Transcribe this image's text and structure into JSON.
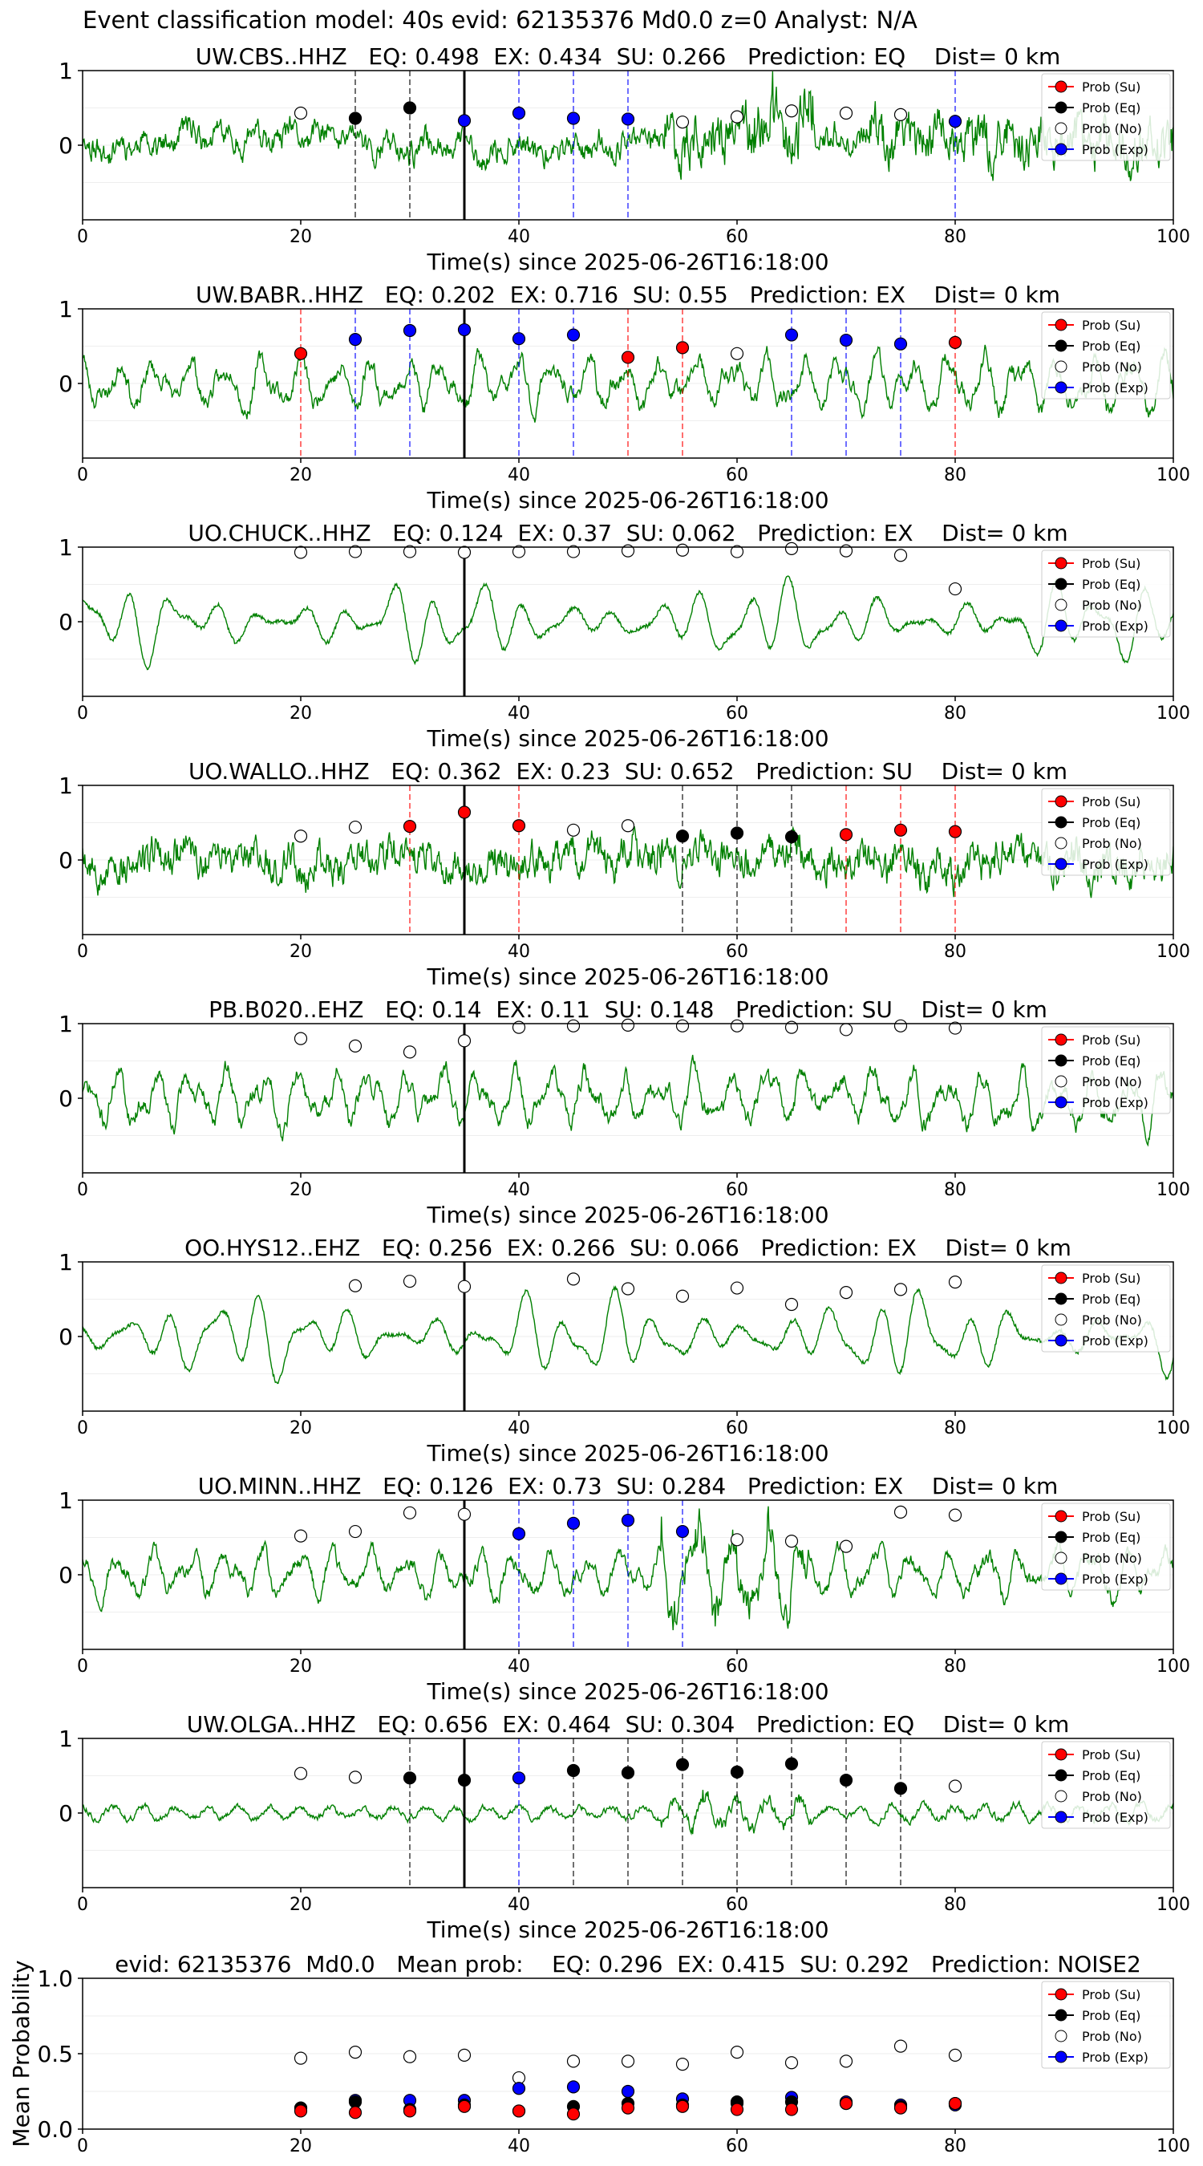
{
  "figure_title": "Event classification model: 40s evid: 62135376 Md0.0 z=0 Analyst: N/A",
  "colors": {
    "waveform": "#008000",
    "su": "#ff0000",
    "eq": "#000000",
    "no": "#ffffff",
    "exp": "#0000ff",
    "origin_line": "#000000"
  },
  "chart_data": [
    {
      "type": "line",
      "title": "UW.CBS..HHZ   EQ: 0.498  EX: 0.434  SU: 0.266   Prediction: EQ    Dist= 0 km",
      "xlabel": "Time(s) since 2025-06-26T16:18:00",
      "ylabel": "",
      "xlim": [
        0,
        100
      ],
      "ylim": [
        -1,
        1
      ],
      "xticks": [
        0,
        20,
        40,
        60,
        80,
        100
      ],
      "yticks": [
        0,
        1
      ],
      "legend_position": "top-right",
      "legend": [
        "Prob (Su)",
        "Prob (Eq)",
        "Prob (No)",
        "Prob (Exp)"
      ],
      "origin_time": 35,
      "waveform": {
        "seed": 11,
        "style": "noisy",
        "amp": 0.26,
        "late_amp": 0.5,
        "burst_at": 55
      },
      "points": [
        {
          "x": 20,
          "y": 0.43,
          "cls": "no"
        },
        {
          "x": 25,
          "y": 0.36,
          "cls": "eq"
        },
        {
          "x": 30,
          "y": 0.5,
          "cls": "eq"
        },
        {
          "x": 35,
          "y": 0.33,
          "cls": "exp"
        },
        {
          "x": 40,
          "y": 0.43,
          "cls": "exp"
        },
        {
          "x": 45,
          "y": 0.36,
          "cls": "exp"
        },
        {
          "x": 50,
          "y": 0.35,
          "cls": "exp"
        },
        {
          "x": 55,
          "y": 0.31,
          "cls": "no"
        },
        {
          "x": 60,
          "y": 0.38,
          "cls": "no"
        },
        {
          "x": 65,
          "y": 0.46,
          "cls": "no"
        },
        {
          "x": 70,
          "y": 0.43,
          "cls": "no"
        },
        {
          "x": 75,
          "y": 0.41,
          "cls": "no"
        },
        {
          "x": 80,
          "y": 0.32,
          "cls": "exp"
        }
      ]
    },
    {
      "type": "line",
      "title": "UW.BABR..HHZ   EQ: 0.202  EX: 0.716  SU: 0.55   Prediction: EX    Dist= 0 km",
      "xlabel": "Time(s) since 2025-06-26T16:18:00",
      "ylabel": "",
      "xlim": [
        0,
        100
      ],
      "ylim": [
        -1,
        1
      ],
      "xticks": [
        0,
        20,
        40,
        60,
        80,
        100
      ],
      "yticks": [
        0,
        1
      ],
      "legend_position": "top-right",
      "legend": [
        "Prob (Su)",
        "Prob (Eq)",
        "Prob (No)",
        "Prob (Exp)"
      ],
      "origin_time": 35,
      "waveform": {
        "seed": 23,
        "style": "mixed",
        "amp": 0.42,
        "late_amp": 0.45,
        "burst_at": 999
      },
      "points": [
        {
          "x": 20,
          "y": 0.4,
          "cls": "su"
        },
        {
          "x": 25,
          "y": 0.59,
          "cls": "exp"
        },
        {
          "x": 30,
          "y": 0.71,
          "cls": "exp"
        },
        {
          "x": 35,
          "y": 0.72,
          "cls": "exp"
        },
        {
          "x": 40,
          "y": 0.6,
          "cls": "exp"
        },
        {
          "x": 45,
          "y": 0.65,
          "cls": "exp"
        },
        {
          "x": 50,
          "y": 0.35,
          "cls": "su"
        },
        {
          "x": 55,
          "y": 0.48,
          "cls": "su"
        },
        {
          "x": 60,
          "y": 0.4,
          "cls": "no"
        },
        {
          "x": 65,
          "y": 0.65,
          "cls": "exp"
        },
        {
          "x": 70,
          "y": 0.58,
          "cls": "exp"
        },
        {
          "x": 75,
          "y": 0.53,
          "cls": "exp"
        },
        {
          "x": 80,
          "y": 0.55,
          "cls": "su"
        }
      ]
    },
    {
      "type": "line",
      "title": "UO.CHUCK..HHZ   EQ: 0.124  EX: 0.37  SU: 0.062   Prediction: EX    Dist= 0 km",
      "xlabel": "Time(s) since 2025-06-26T16:18:00",
      "ylabel": "",
      "xlim": [
        0,
        100
      ],
      "ylim": [
        -1,
        1
      ],
      "xticks": [
        0,
        20,
        40,
        60,
        80,
        100
      ],
      "yticks": [
        0,
        1
      ],
      "legend_position": "top-right",
      "legend": [
        "Prob (Su)",
        "Prob (Eq)",
        "Prob (No)",
        "Prob (Exp)"
      ],
      "origin_time": 35,
      "waveform": {
        "seed": 37,
        "style": "smooth",
        "amp": 0.55,
        "late_amp": 0.55,
        "burst_at": 999
      },
      "points": [
        {
          "x": 20,
          "y": 0.93,
          "cls": "no"
        },
        {
          "x": 25,
          "y": 0.94,
          "cls": "no"
        },
        {
          "x": 30,
          "y": 0.94,
          "cls": "no"
        },
        {
          "x": 35,
          "y": 0.93,
          "cls": "no"
        },
        {
          "x": 40,
          "y": 0.94,
          "cls": "no"
        },
        {
          "x": 45,
          "y": 0.94,
          "cls": "no"
        },
        {
          "x": 50,
          "y": 0.95,
          "cls": "no"
        },
        {
          "x": 55,
          "y": 0.96,
          "cls": "no"
        },
        {
          "x": 60,
          "y": 0.94,
          "cls": "no"
        },
        {
          "x": 65,
          "y": 0.98,
          "cls": "no"
        },
        {
          "x": 70,
          "y": 0.95,
          "cls": "no"
        },
        {
          "x": 75,
          "y": 0.89,
          "cls": "no"
        },
        {
          "x": 80,
          "y": 0.44,
          "cls": "no"
        }
      ]
    },
    {
      "type": "line",
      "title": "UO.WALLO..HHZ   EQ: 0.362  EX: 0.23  SU: 0.652   Prediction: SU    Dist= 0 km",
      "xlabel": "Time(s) since 2025-06-26T16:18:00",
      "ylabel": "",
      "xlim": [
        0,
        100
      ],
      "ylim": [
        -1,
        1
      ],
      "xticks": [
        0,
        20,
        40,
        60,
        80,
        100
      ],
      "yticks": [
        0,
        1
      ],
      "legend_position": "top-right",
      "legend": [
        "Prob (Su)",
        "Prob (Eq)",
        "Prob (No)",
        "Prob (Exp)"
      ],
      "origin_time": 35,
      "waveform": {
        "seed": 53,
        "style": "noisy",
        "amp": 0.38,
        "late_amp": 0.42,
        "burst_at": 999
      },
      "points": [
        {
          "x": 20,
          "y": 0.32,
          "cls": "no"
        },
        {
          "x": 25,
          "y": 0.44,
          "cls": "no"
        },
        {
          "x": 30,
          "y": 0.45,
          "cls": "su"
        },
        {
          "x": 35,
          "y": 0.64,
          "cls": "su"
        },
        {
          "x": 40,
          "y": 0.46,
          "cls": "su"
        },
        {
          "x": 45,
          "y": 0.4,
          "cls": "no"
        },
        {
          "x": 50,
          "y": 0.46,
          "cls": "no"
        },
        {
          "x": 55,
          "y": 0.32,
          "cls": "eq"
        },
        {
          "x": 60,
          "y": 0.36,
          "cls": "eq"
        },
        {
          "x": 65,
          "y": 0.31,
          "cls": "eq"
        },
        {
          "x": 70,
          "y": 0.34,
          "cls": "su"
        },
        {
          "x": 75,
          "y": 0.4,
          "cls": "su"
        },
        {
          "x": 80,
          "y": 0.38,
          "cls": "su"
        }
      ]
    },
    {
      "type": "line",
      "title": "PB.B020..EHZ   EQ: 0.14  EX: 0.11  SU: 0.148   Prediction: SU    Dist= 0 km",
      "xlabel": "Time(s) since 2025-06-26T16:18:00",
      "ylabel": "",
      "xlim": [
        0,
        100
      ],
      "ylim": [
        -1,
        1
      ],
      "xticks": [
        0,
        20,
        40,
        60,
        80,
        100
      ],
      "yticks": [
        0,
        1
      ],
      "legend_position": "top-right",
      "legend": [
        "Prob (Su)",
        "Prob (Eq)",
        "Prob (No)",
        "Prob (Exp)"
      ],
      "origin_time": 35,
      "waveform": {
        "seed": 71,
        "style": "mixed",
        "amp": 0.45,
        "late_amp": 0.45,
        "burst_at": 999
      },
      "points": [
        {
          "x": 20,
          "y": 0.8,
          "cls": "no"
        },
        {
          "x": 25,
          "y": 0.7,
          "cls": "no"
        },
        {
          "x": 30,
          "y": 0.62,
          "cls": "no"
        },
        {
          "x": 35,
          "y": 0.77,
          "cls": "no"
        },
        {
          "x": 40,
          "y": 0.95,
          "cls": "no"
        },
        {
          "x": 45,
          "y": 0.97,
          "cls": "no"
        },
        {
          "x": 50,
          "y": 0.98,
          "cls": "no"
        },
        {
          "x": 55,
          "y": 0.97,
          "cls": "no"
        },
        {
          "x": 60,
          "y": 0.97,
          "cls": "no"
        },
        {
          "x": 65,
          "y": 0.95,
          "cls": "no"
        },
        {
          "x": 70,
          "y": 0.92,
          "cls": "no"
        },
        {
          "x": 75,
          "y": 0.97,
          "cls": "no"
        },
        {
          "x": 80,
          "y": 0.94,
          "cls": "no"
        }
      ]
    },
    {
      "type": "line",
      "title": "OO.HYS12..EHZ   EQ: 0.256  EX: 0.266  SU: 0.066   Prediction: EX    Dist= 0 km",
      "xlabel": "Time(s) since 2025-06-26T16:18:00",
      "ylabel": "",
      "xlim": [
        0,
        100
      ],
      "ylim": [
        -1,
        1
      ],
      "xticks": [
        0,
        20,
        40,
        60,
        80,
        100
      ],
      "yticks": [
        0,
        1
      ],
      "legend_position": "top-right",
      "legend": [
        "Prob (Su)",
        "Prob (Eq)",
        "Prob (No)",
        "Prob (Exp)"
      ],
      "origin_time": 35,
      "waveform": {
        "seed": 89,
        "style": "smooth",
        "amp": 0.6,
        "late_amp": 0.6,
        "burst_at": 999
      },
      "points": [
        {
          "x": 25,
          "y": 0.68,
          "cls": "no"
        },
        {
          "x": 30,
          "y": 0.74,
          "cls": "no"
        },
        {
          "x": 35,
          "y": 0.67,
          "cls": "no"
        },
        {
          "x": 45,
          "y": 0.77,
          "cls": "no"
        },
        {
          "x": 50,
          "y": 0.64,
          "cls": "no"
        },
        {
          "x": 55,
          "y": 0.54,
          "cls": "no"
        },
        {
          "x": 60,
          "y": 0.65,
          "cls": "no"
        },
        {
          "x": 65,
          "y": 0.43,
          "cls": "no"
        },
        {
          "x": 70,
          "y": 0.59,
          "cls": "no"
        },
        {
          "x": 75,
          "y": 0.63,
          "cls": "no"
        },
        {
          "x": 80,
          "y": 0.73,
          "cls": "no"
        }
      ]
    },
    {
      "type": "line",
      "title": "UO.MINN..HHZ   EQ: 0.126  EX: 0.73  SU: 0.284   Prediction: EX    Dist= 0 km",
      "xlabel": "Time(s) since 2025-06-26T16:18:00",
      "ylabel": "",
      "xlim": [
        0,
        100
      ],
      "ylim": [
        -1,
        1
      ],
      "xticks": [
        0,
        20,
        40,
        60,
        80,
        100
      ],
      "yticks": [
        0,
        1
      ],
      "legend_position": "top-right",
      "legend": [
        "Prob (Su)",
        "Prob (Eq)",
        "Prob (No)",
        "Prob (Exp)"
      ],
      "origin_time": 35,
      "waveform": {
        "seed": 97,
        "style": "mixed",
        "amp": 0.35,
        "late_amp": 0.4,
        "burst_at": 55
      },
      "points": [
        {
          "x": 20,
          "y": 0.52,
          "cls": "no"
        },
        {
          "x": 25,
          "y": 0.58,
          "cls": "no"
        },
        {
          "x": 30,
          "y": 0.83,
          "cls": "no"
        },
        {
          "x": 35,
          "y": 0.81,
          "cls": "no"
        },
        {
          "x": 40,
          "y": 0.55,
          "cls": "exp"
        },
        {
          "x": 45,
          "y": 0.69,
          "cls": "exp"
        },
        {
          "x": 50,
          "y": 0.73,
          "cls": "exp"
        },
        {
          "x": 55,
          "y": 0.58,
          "cls": "exp"
        },
        {
          "x": 60,
          "y": 0.47,
          "cls": "no"
        },
        {
          "x": 65,
          "y": 0.45,
          "cls": "no"
        },
        {
          "x": 70,
          "y": 0.38,
          "cls": "no"
        },
        {
          "x": 75,
          "y": 0.84,
          "cls": "no"
        },
        {
          "x": 80,
          "y": 0.8,
          "cls": "no"
        }
      ]
    },
    {
      "type": "line",
      "title": "UW.OLGA..HHZ   EQ: 0.656  EX: 0.464  SU: 0.304   Prediction: EQ    Dist= 0 km",
      "xlabel": "Time(s) since 2025-06-26T16:18:00",
      "ylabel": "",
      "xlim": [
        0,
        100
      ],
      "ylim": [
        -1,
        1
      ],
      "xticks": [
        0,
        20,
        40,
        60,
        80,
        100
      ],
      "yticks": [
        0,
        1
      ],
      "legend_position": "top-right",
      "legend": [
        "Prob (Su)",
        "Prob (Eq)",
        "Prob (No)",
        "Prob (Exp)"
      ],
      "origin_time": 35,
      "waveform": {
        "seed": 113,
        "style": "quiet",
        "amp": 0.16,
        "late_amp": 0.2,
        "burst_at": 55
      },
      "points": [
        {
          "x": 20,
          "y": 0.53,
          "cls": "no"
        },
        {
          "x": 25,
          "y": 0.48,
          "cls": "no"
        },
        {
          "x": 30,
          "y": 0.47,
          "cls": "eq"
        },
        {
          "x": 35,
          "y": 0.44,
          "cls": "eq"
        },
        {
          "x": 40,
          "y": 0.47,
          "cls": "exp"
        },
        {
          "x": 45,
          "y": 0.57,
          "cls": "eq"
        },
        {
          "x": 50,
          "y": 0.54,
          "cls": "eq"
        },
        {
          "x": 55,
          "y": 0.65,
          "cls": "eq"
        },
        {
          "x": 60,
          "y": 0.55,
          "cls": "eq"
        },
        {
          "x": 65,
          "y": 0.66,
          "cls": "eq"
        },
        {
          "x": 70,
          "y": 0.44,
          "cls": "eq"
        },
        {
          "x": 75,
          "y": 0.33,
          "cls": "eq"
        },
        {
          "x": 80,
          "y": 0.36,
          "cls": "no"
        }
      ]
    },
    {
      "type": "scatter",
      "title": "evid: 62135376  Md0.0   Mean prob:    EQ: 0.296  EX: 0.415  SU: 0.292   Prediction: NOISE2",
      "xlabel": "",
      "ylabel": "Mean Probability",
      "xlim": [
        0,
        100
      ],
      "ylim": [
        0,
        1
      ],
      "xticks": [
        0,
        20,
        40,
        60,
        80,
        100
      ],
      "yticks": [
        "0.0",
        "0.5",
        "1.0"
      ],
      "legend_position": "top-right",
      "legend": [
        "Prob (Su)",
        "Prob (Eq)",
        "Prob (No)",
        "Prob (Exp)"
      ],
      "x": [
        20,
        25,
        30,
        35,
        40,
        45,
        50,
        55,
        60,
        65,
        70,
        75,
        80
      ],
      "series": [
        {
          "name": "Prob (No)",
          "cls": "no",
          "values": [
            0.47,
            0.51,
            0.48,
            0.49,
            0.34,
            0.45,
            0.45,
            0.43,
            0.51,
            0.44,
            0.45,
            0.55,
            0.49
          ]
        },
        {
          "name": "Prob (Exp)",
          "cls": "exp",
          "values": [
            0.14,
            0.19,
            0.19,
            0.19,
            0.27,
            0.28,
            0.25,
            0.2,
            0.17,
            0.21,
            0.18,
            0.16,
            0.16
          ]
        },
        {
          "name": "Prob (Eq)",
          "cls": "eq",
          "values": [
            0.14,
            0.18,
            0.13,
            0.16,
            0.12,
            0.15,
            0.17,
            0.16,
            0.18,
            0.18,
            0.17,
            0.15,
            0.17
          ]
        },
        {
          "name": "Prob (Su)",
          "cls": "su",
          "values": [
            0.12,
            0.11,
            0.12,
            0.15,
            0.12,
            0.1,
            0.14,
            0.15,
            0.13,
            0.13,
            0.17,
            0.14,
            0.17
          ]
        }
      ]
    }
  ]
}
